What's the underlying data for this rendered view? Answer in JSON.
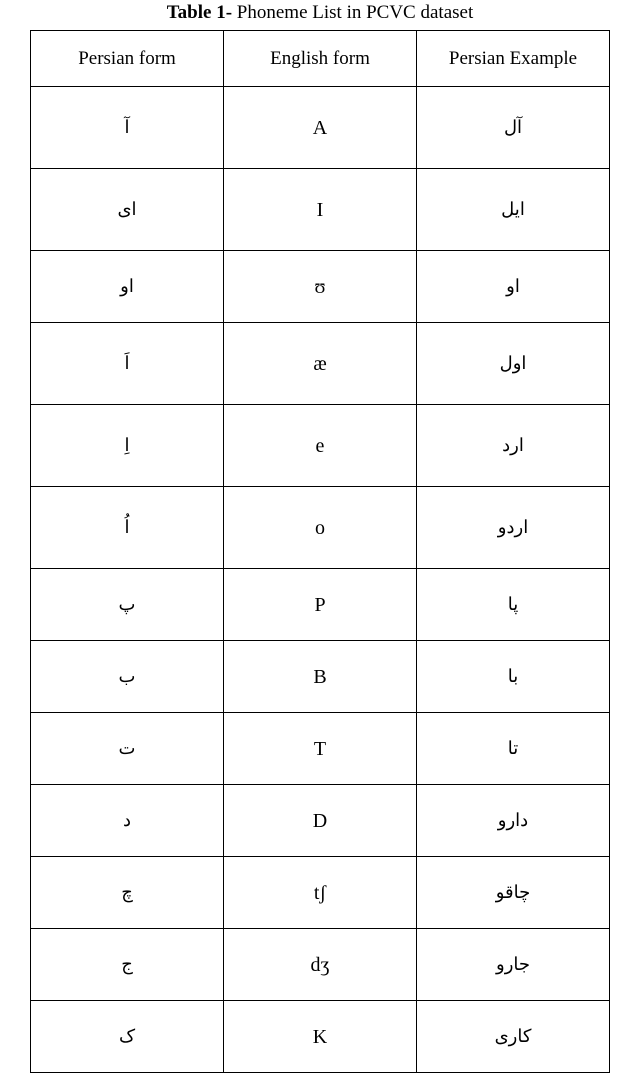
{
  "caption_prefix": "Table 1-",
  "caption_rest": " Phoneme List in PCVC dataset",
  "headers": {
    "col1": "Persian form",
    "col2": "English form",
    "col3": "Persian Example"
  },
  "rows": [
    {
      "persian_form": "آ",
      "english_form": "A",
      "example": "آل",
      "tall": true
    },
    {
      "persian_form": "ای",
      "english_form": "I",
      "example": "ایل",
      "tall": true
    },
    {
      "persian_form": "او",
      "english_form": "ʊ",
      "example": "او",
      "tall": false
    },
    {
      "persian_form": "اَ",
      "english_form": "æ",
      "example": "اول",
      "tall": true
    },
    {
      "persian_form": "اِ",
      "english_form": "e",
      "example": "ارد",
      "tall": true
    },
    {
      "persian_form": "اُ",
      "english_form": "o",
      "example": "اردو",
      "tall": true
    },
    {
      "persian_form": "پ",
      "english_form": "P",
      "example": "پا",
      "tall": false
    },
    {
      "persian_form": "ب",
      "english_form": "B",
      "example": "با",
      "tall": false
    },
    {
      "persian_form": "ت",
      "english_form": "T",
      "example": "تا",
      "tall": false
    },
    {
      "persian_form": "د",
      "english_form": "D",
      "example": "دارو",
      "tall": false
    },
    {
      "persian_form": "چ",
      "english_form": "tʃ",
      "example": "چاقو",
      "tall": false
    },
    {
      "persian_form": "ج",
      "english_form": "dʒ",
      "example": "جارو",
      "tall": false
    },
    {
      "persian_form": "ک",
      "english_form": "K",
      "example": "کاری",
      "tall": false
    }
  ],
  "styles": {
    "border_color": "#000000",
    "background_color": "#ffffff",
    "text_color": "#000000",
    "caption_fontsize": 19,
    "header_fontsize": 19,
    "cell_fontsize": 20
  }
}
